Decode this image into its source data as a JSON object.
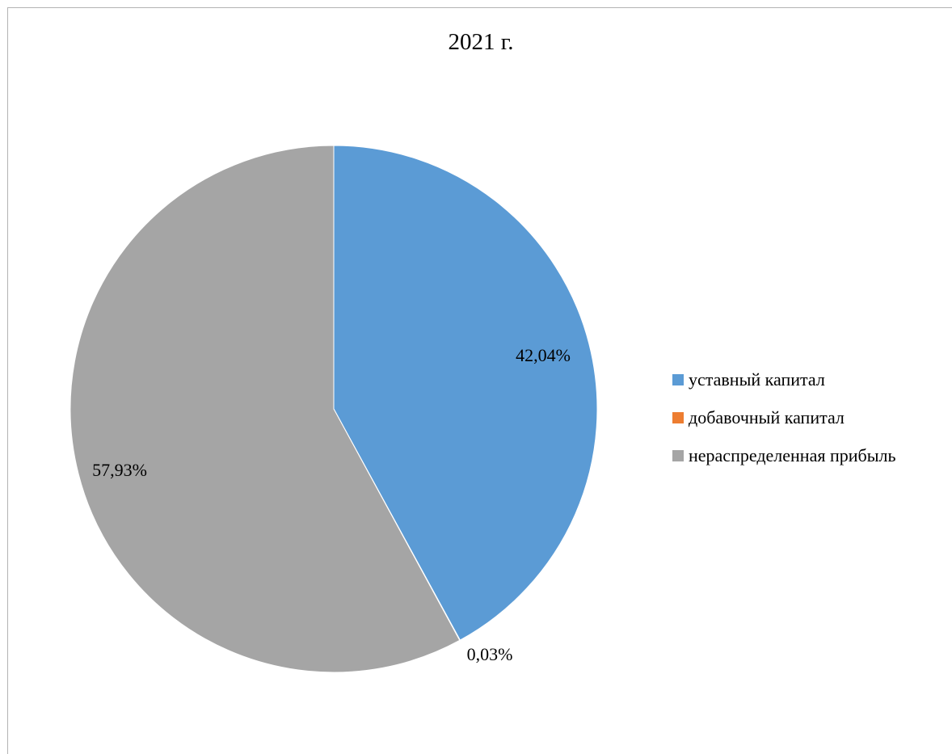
{
  "chart_data": {
    "type": "pie",
    "title": "2021 г.",
    "slices": [
      {
        "label": "уставный капитал",
        "value": 42.04,
        "data_label": "42,04%",
        "color": "#5b9bd5"
      },
      {
        "label": "добавочный капитал",
        "value": 0.03,
        "data_label": "0,03%",
        "color": "#ed7d31"
      },
      {
        "label": "нераспределенная прибыль",
        "value": 57.93,
        "data_label": "57,93%",
        "color": "#a5a5a5"
      }
    ],
    "legend_position": "right"
  }
}
